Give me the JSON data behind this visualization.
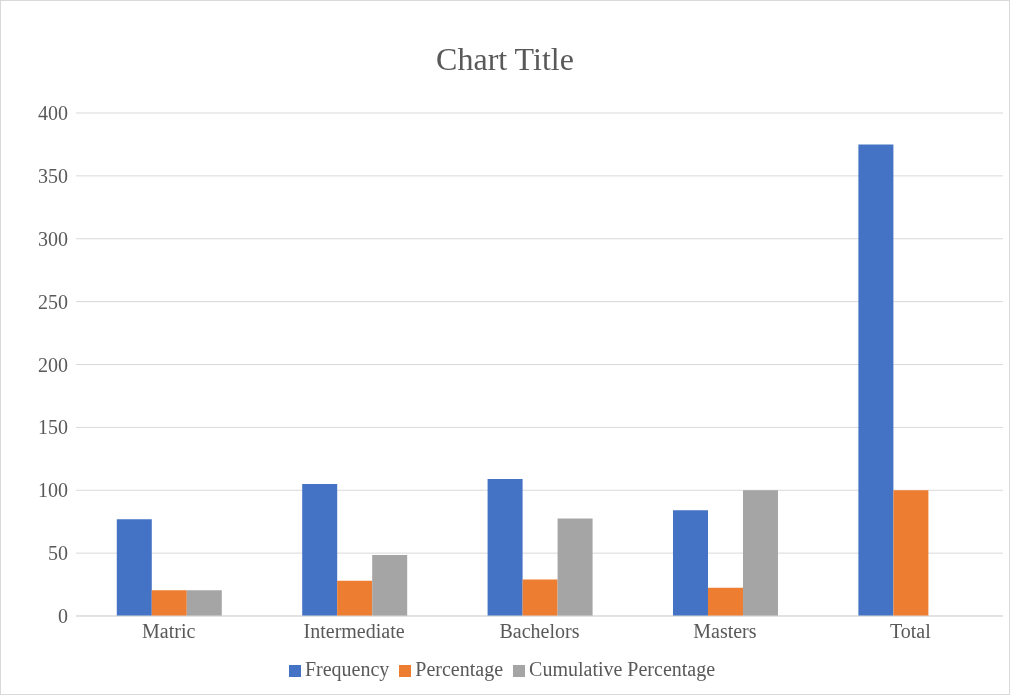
{
  "chart_data": {
    "type": "bar",
    "title": "Chart Title",
    "categories": [
      "Matric",
      "Intermediate",
      "Bachelors",
      "Masters",
      "Total"
    ],
    "series": [
      {
        "name": "Frequency",
        "color": "#4472c4",
        "values": [
          77,
          105,
          109,
          84,
          375
        ]
      },
      {
        "name": "Percentage",
        "color": "#ed7d31",
        "values": [
          20.5,
          28,
          29.1,
          22.4,
          100
        ]
      },
      {
        "name": "Cumulative Percentage",
        "color": "#a5a5a5",
        "values": [
          20.5,
          48.5,
          77.6,
          100,
          null
        ]
      }
    ],
    "ylim": [
      0,
      400
    ],
    "yticks": [
      0,
      50,
      100,
      150,
      200,
      250,
      300,
      350,
      400
    ],
    "grid": "y",
    "legend": "bottom"
  }
}
